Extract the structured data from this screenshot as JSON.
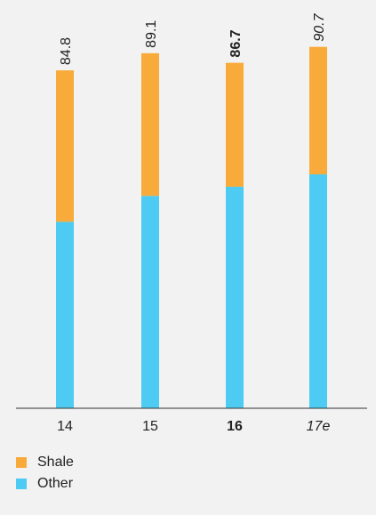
{
  "chart_data": {
    "type": "bar",
    "stacked": true,
    "categories": [
      "14",
      "15",
      "16",
      "17e"
    ],
    "category_styles": [
      "normal",
      "normal",
      "bold",
      "italic"
    ],
    "totals": [
      "84.8",
      "89.1",
      "86.7",
      "90.7"
    ],
    "series": [
      {
        "name": "Other",
        "values": [
          46.8,
          53.3,
          55.6,
          58.7
        ],
        "color": "#4dcbf2"
      },
      {
        "name": "Shale",
        "values": [
          38.0,
          35.8,
          31.1,
          32.0
        ],
        "color": "#f8ab3a"
      }
    ],
    "ylim": [
      0,
      100
    ],
    "grid": false,
    "legend_position": "bottom-left"
  }
}
